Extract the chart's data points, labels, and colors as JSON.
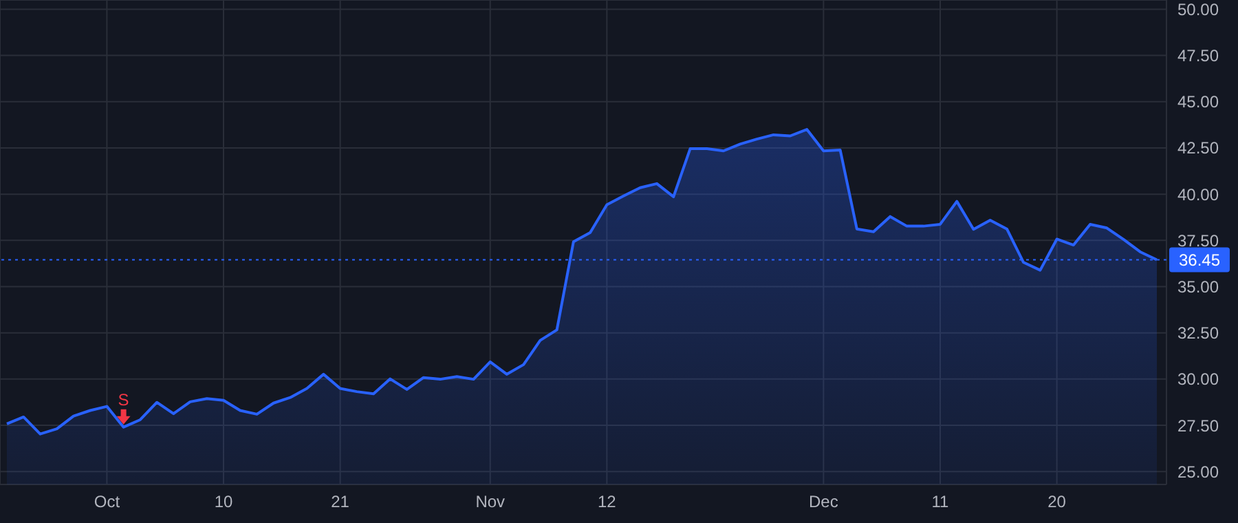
{
  "chart_data": {
    "type": "area",
    "categories": [
      null,
      null,
      null,
      null,
      null,
      null,
      "Oct",
      null,
      null,
      null,
      null,
      null,
      null,
      "10",
      null,
      null,
      null,
      null,
      null,
      null,
      "21",
      null,
      null,
      null,
      null,
      null,
      null,
      null,
      null,
      "Nov",
      null,
      null,
      null,
      null,
      null,
      null,
      "12",
      null,
      null,
      null,
      null,
      null,
      null,
      null,
      null,
      null,
      null,
      null,
      null,
      "Dec",
      null,
      null,
      null,
      null,
      null,
      null,
      "11",
      null,
      null,
      null,
      null,
      null,
      null,
      "20",
      null,
      null,
      null,
      null,
      null,
      null
    ],
    "series": [
      {
        "color": "#2962ff",
        "values": [
          27.58,
          27.95,
          27.03,
          27.31,
          28.0,
          28.3,
          28.52,
          27.4,
          27.8,
          28.74,
          28.13,
          28.77,
          28.94,
          28.85,
          28.3,
          28.1,
          28.7,
          29.0,
          29.49,
          30.26,
          29.49,
          29.32,
          29.2,
          30.01,
          29.44,
          30.08,
          29.99,
          30.13,
          29.99,
          30.93,
          30.26,
          30.78,
          32.09,
          32.66,
          37.43,
          37.92,
          39.43,
          39.9,
          40.35,
          40.57,
          39.86,
          42.46,
          42.46,
          42.34,
          42.71,
          42.98,
          43.21,
          43.15,
          43.5,
          42.34,
          42.39,
          38.12,
          37.97,
          38.79,
          38.27,
          38.27,
          38.37,
          39.61,
          38.1,
          38.59,
          38.12,
          36.31,
          35.89,
          37.57,
          37.25,
          38.37,
          38.17,
          37.55,
          36.88,
          36.45
        ]
      }
    ],
    "ylim": [
      24.3,
      50.5
    ],
    "yticks": [
      {
        "value": 25,
        "label": "25.00"
      },
      {
        "value": 27.5,
        "label": "27.50"
      },
      {
        "value": 30,
        "label": "30.00"
      },
      {
        "value": 32.5,
        "label": "32.50"
      },
      {
        "value": 35,
        "label": "35.00"
      },
      {
        "value": 37.5,
        "label": "37.50"
      },
      {
        "value": 40,
        "label": "40.00"
      },
      {
        "value": 42.5,
        "label": "42.50"
      },
      {
        "value": 45,
        "label": "45.00"
      },
      {
        "value": 47.5,
        "label": "47.50"
      },
      {
        "value": 50,
        "label": "50.00"
      }
    ],
    "grid": true,
    "ref_lines": [
      {
        "axis": "y",
        "value": 36.45,
        "label": "36.45",
        "color": "#2962ff",
        "line_style": "dotted"
      }
    ],
    "annotations": [
      "S"
    ]
  }
}
